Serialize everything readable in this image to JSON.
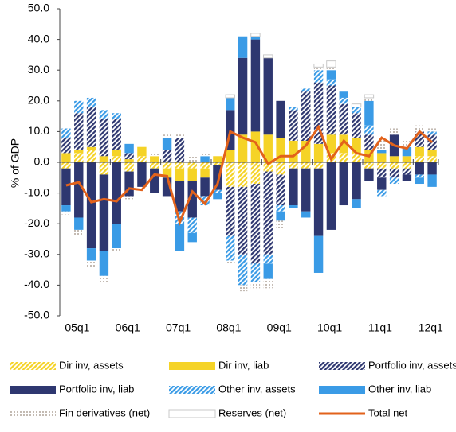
{
  "chart_data": {
    "type": "stacked-bar-line",
    "y_label": "% of GDP",
    "categories": [
      "05q1",
      null,
      null,
      null,
      "06q1",
      null,
      null,
      null,
      "07q1",
      null,
      null,
      null,
      "08q1",
      null,
      null,
      null,
      "09q1",
      null,
      null,
      null,
      "10q1",
      null,
      null,
      null,
      "11q1",
      null,
      null,
      null,
      "12q1",
      null
    ],
    "ylim": [
      -50,
      50
    ],
    "yticks": [
      {
        "value": 50,
        "label": "50.0"
      },
      {
        "value": 40,
        "label": "40.0"
      },
      {
        "value": 30,
        "label": "30.0"
      },
      {
        "value": 20,
        "label": "20.0"
      },
      {
        "value": 10,
        "label": "10.0"
      },
      {
        "value": 0,
        "label": "0.0"
      },
      {
        "value": -10,
        "label": "-10.0"
      },
      {
        "value": -20,
        "label": "-20.0"
      },
      {
        "value": -30,
        "label": "-30.0"
      },
      {
        "value": -40,
        "label": "-40.0"
      },
      {
        "value": -50,
        "label": "-50.0"
      }
    ],
    "series": [
      {
        "name": "Dir inv, assets",
        "type": "bar",
        "pattern": "hatch",
        "color": "#f5d327",
        "values": [
          -2,
          3,
          4,
          -4,
          2,
          -3,
          2,
          -2,
          -2,
          -2,
          -2,
          -2,
          -1,
          -8,
          -8,
          -7,
          -3,
          -4,
          -2,
          -2,
          -2,
          3,
          3,
          3,
          -2,
          -2,
          -2,
          -2,
          2,
          2
        ]
      },
      {
        "name": "Dir inv, liab",
        "type": "bar",
        "pattern": "solid",
        "color": "#f5d327",
        "values": [
          3,
          1,
          1,
          2,
          2,
          1,
          3,
          2,
          -3,
          -4,
          -4,
          -3,
          2,
          4,
          9,
          10,
          9,
          8,
          7,
          7,
          6,
          6,
          6,
          5,
          4,
          3,
          2,
          2,
          3,
          2
        ]
      },
      {
        "name": "Portfolio inv, assets",
        "type": "bar",
        "pattern": "hatch",
        "color": "#2e3770",
        "values": [
          5,
          12,
          13,
          12,
          10,
          2,
          0,
          0,
          4,
          8,
          0,
          0,
          0,
          -16,
          -22,
          -26,
          -27,
          -10,
          10,
          16,
          20,
          16,
          10,
          8,
          5,
          -3,
          -3,
          -2,
          5,
          5
        ]
      },
      {
        "name": "Portfolio inv, liab",
        "type": "bar",
        "pattern": "solid",
        "color": "#2e3770",
        "values": [
          -12,
          -18,
          -28,
          -25,
          -20,
          -8,
          -8,
          -8,
          -6,
          -10,
          -12,
          -6,
          -8,
          13,
          25,
          30,
          25,
          12,
          -12,
          -14,
          -22,
          -22,
          -14,
          -12,
          -4,
          -4,
          7,
          -2,
          -4,
          -4
        ]
      },
      {
        "name": "Other inv, assets",
        "type": "bar",
        "pattern": "hatch",
        "color": "#3a9be6",
        "values": [
          3,
          4,
          3,
          3,
          2,
          0,
          0,
          0,
          0,
          -4,
          -5,
          -3,
          -1,
          -8,
          -10,
          -6,
          -3,
          -2,
          1,
          1,
          4,
          2,
          2,
          2,
          3,
          -2,
          -2,
          0,
          -1,
          1
        ]
      },
      {
        "name": "Other inv, liab",
        "type": "bar",
        "pattern": "solid",
        "color": "#3a9be6",
        "values": [
          -2,
          -4,
          -4,
          -8,
          -8,
          3,
          0,
          0,
          4,
          -9,
          -3,
          2,
          -2,
          4,
          7,
          1,
          -5,
          -3,
          -1,
          -2,
          -12,
          3,
          2,
          -3,
          8,
          1,
          0,
          3,
          -2,
          -4
        ]
      },
      {
        "name": "Fin derivatives (net)",
        "type": "bar",
        "pattern": "dots",
        "color": "#b0a49a",
        "values": [
          -1,
          -2,
          -2,
          -2,
          -1,
          -1,
          0,
          1,
          1,
          1,
          2,
          1,
          0,
          -1,
          -2,
          -2,
          -3,
          -3,
          0,
          0,
          1,
          1,
          0,
          0,
          1,
          3,
          2,
          2,
          2,
          1
        ]
      },
      {
        "name": "Reserves (net)",
        "type": "bar",
        "pattern": "outline",
        "color": "#c8c8c8",
        "values": [
          0,
          0,
          0,
          0,
          0,
          0,
          0,
          0,
          0,
          0,
          0,
          0,
          0,
          1,
          0,
          1,
          1,
          0,
          0,
          0,
          1,
          2,
          0,
          1,
          1,
          0,
          0,
          0,
          0,
          0
        ]
      },
      {
        "name": "Total net",
        "type": "line",
        "color": "#e2621b",
        "values": [
          -7.5,
          -6.5,
          -13,
          -12,
          -12.7,
          -8.5,
          -9,
          -4,
          -4.5,
          -19.5,
          -9.5,
          -13.5,
          -7,
          10,
          8,
          6.5,
          -0.5,
          2,
          2,
          5.5,
          11.5,
          1,
          7,
          3,
          2,
          8,
          5.5,
          4.5,
          10,
          6.5
        ]
      }
    ]
  }
}
